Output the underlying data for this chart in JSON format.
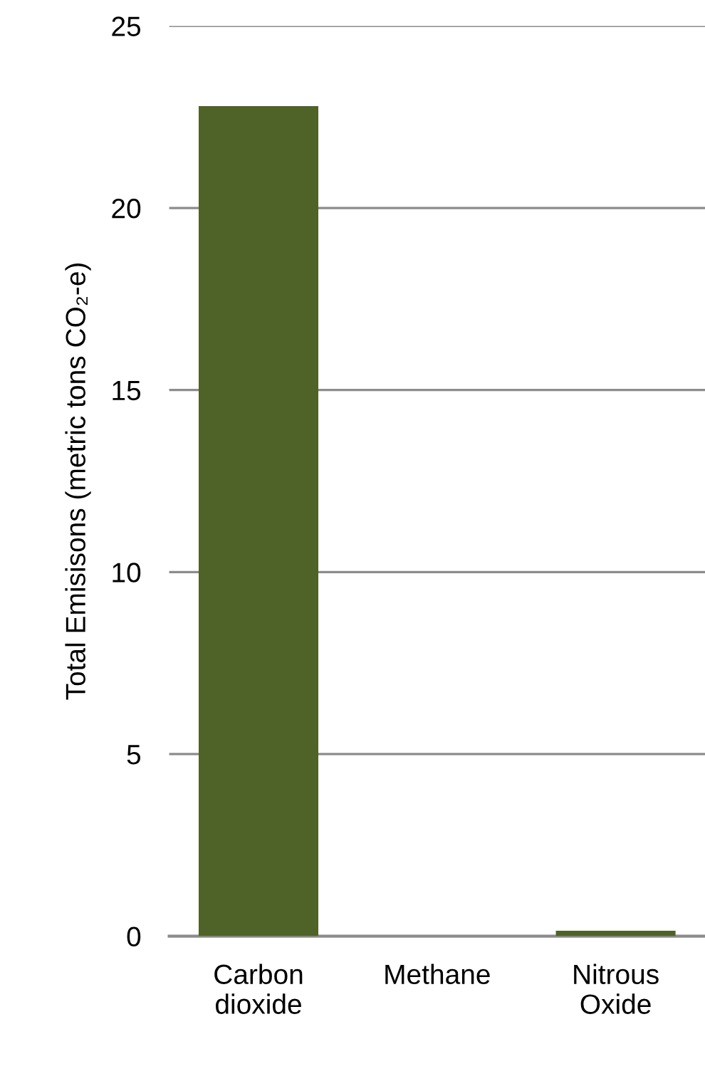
{
  "chart_data": {
    "type": "bar",
    "ylabel": "Total Emisisons (metric tons CO₂-e)",
    "categories": [
      "Carbon\ndioxide",
      "Methane",
      "Nitrous\nOxide"
    ],
    "values": [
      22.8,
      0,
      0.15
    ],
    "color": "#4f6228",
    "ylim": [
      0,
      25
    ],
    "yticks": [
      0,
      5,
      10,
      15,
      20,
      25
    ],
    "grid": "y"
  }
}
